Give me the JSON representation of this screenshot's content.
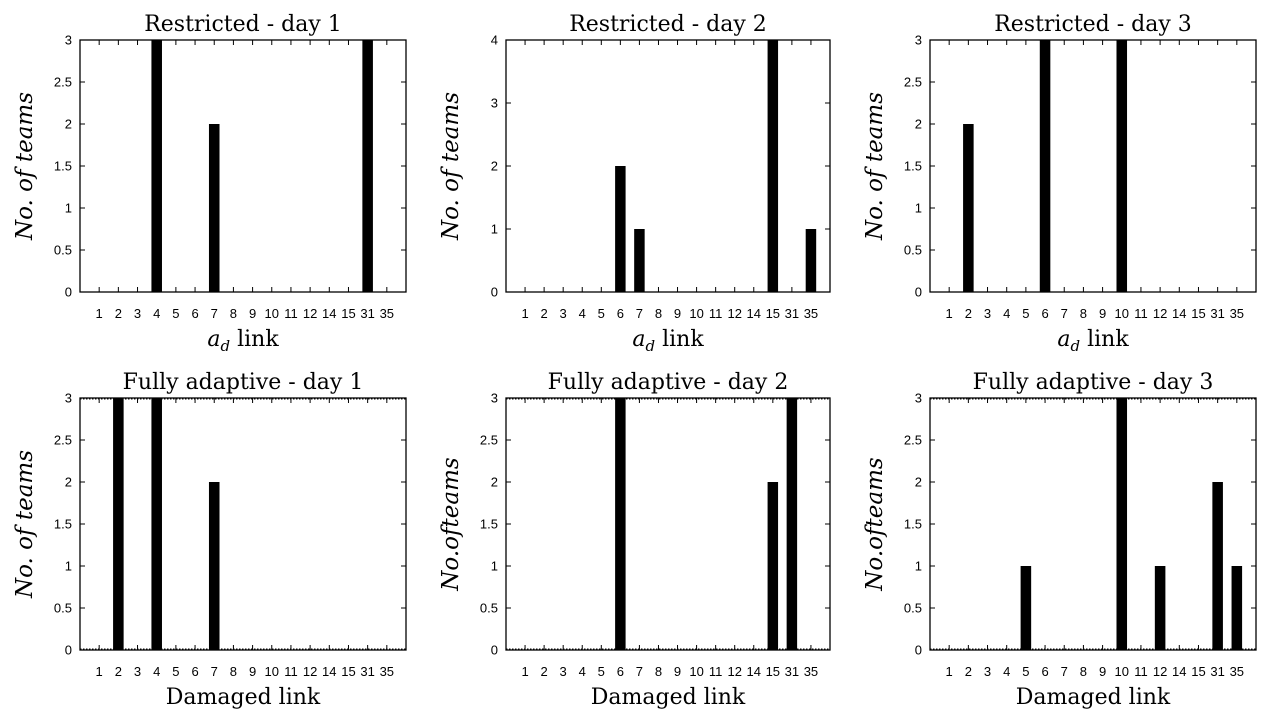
{
  "chart_data": [
    {
      "type": "bar",
      "title": "Restricted - day 1",
      "xlabel_main": "a",
      "xlabel_sub": "d",
      "xlabel_rest": " link",
      "ylabel": "No. of teams",
      "ylim": [
        0,
        3
      ],
      "yticks": [
        "0",
        "0.5",
        "1",
        "1.5",
        "2",
        "2.5",
        "3"
      ],
      "categories": [
        "1",
        "2",
        "3",
        "4",
        "5",
        "6",
        "7",
        "8",
        "9",
        "10",
        "11",
        "12",
        "14",
        "15",
        "31",
        "35"
      ],
      "values": [
        0,
        0,
        0,
        3,
        0,
        0,
        2,
        0,
        0,
        0,
        0,
        0,
        0,
        0,
        3,
        0
      ],
      "grid": false
    },
    {
      "type": "bar",
      "title": "Restricted - day 2",
      "xlabel_main": "a",
      "xlabel_sub": "d",
      "xlabel_rest": " link",
      "ylabel": "No. of teams",
      "ylim": [
        0,
        4
      ],
      "yticks": [
        "0",
        "1",
        "2",
        "3",
        "4"
      ],
      "categories": [
        "1",
        "2",
        "3",
        "4",
        "5",
        "6",
        "7",
        "8",
        "9",
        "10",
        "11",
        "12",
        "14",
        "15",
        "31",
        "35"
      ],
      "values": [
        0,
        0,
        0,
        0,
        0,
        2,
        1,
        0,
        0,
        0,
        0,
        0,
        0,
        4,
        0,
        1
      ],
      "grid": false
    },
    {
      "type": "bar",
      "title": "Restricted - day 3",
      "xlabel_main": "a",
      "xlabel_sub": "d",
      "xlabel_rest": " link",
      "ylabel": "No. of teams",
      "ylim": [
        0,
        3
      ],
      "yticks": [
        "0",
        "0.5",
        "1",
        "1.5",
        "2",
        "2.5",
        "3"
      ],
      "categories": [
        "1",
        "2",
        "3",
        "4",
        "5",
        "6",
        "7",
        "8",
        "9",
        "10",
        "11",
        "12",
        "14",
        "15",
        "31",
        "35"
      ],
      "values": [
        0,
        2,
        0,
        0,
        0,
        3,
        0,
        0,
        0,
        3,
        0,
        0,
        0,
        0,
        0,
        0
      ],
      "grid": false
    },
    {
      "type": "bar",
      "title": "Fully adaptive - day 1",
      "xlabel": "Damaged link",
      "ylabel": "No. of teams",
      "ylim": [
        0,
        3
      ],
      "yticks": [
        "0",
        "0.5",
        "1",
        "1.5",
        "2",
        "2.5",
        "3"
      ],
      "categories": [
        "1",
        "2",
        "3",
        "4",
        "5",
        "6",
        "7",
        "8",
        "9",
        "10",
        "11",
        "12",
        "14",
        "15",
        "31",
        "35"
      ],
      "values": [
        0,
        3,
        0,
        3,
        0,
        0,
        2,
        0,
        0,
        0,
        0,
        0,
        0,
        0,
        0,
        0
      ],
      "grid": false
    },
    {
      "type": "bar",
      "title": "Fully adaptive - day 2",
      "xlabel": "Damaged link",
      "ylabel": "No.ofteams",
      "ylim": [
        0,
        3
      ],
      "yticks": [
        "0",
        "0.5",
        "1",
        "1.5",
        "2",
        "2.5",
        "3"
      ],
      "categories": [
        "1",
        "2",
        "3",
        "4",
        "5",
        "6",
        "7",
        "8",
        "9",
        "10",
        "11",
        "12",
        "14",
        "15",
        "31",
        "35"
      ],
      "values": [
        0,
        0,
        0,
        0,
        0,
        3,
        0,
        0,
        0,
        0,
        0,
        0,
        0,
        2,
        3,
        0
      ],
      "grid": false
    },
    {
      "type": "bar",
      "title": "Fully adaptive - day 3",
      "xlabel": "Damaged link",
      "ylabel": "No.ofteams",
      "ylim": [
        0,
        3
      ],
      "yticks": [
        "0",
        "0.5",
        "1",
        "1.5",
        "2",
        "2.5",
        "3"
      ],
      "categories": [
        "1",
        "2",
        "3",
        "4",
        "5",
        "6",
        "7",
        "8",
        "9",
        "10",
        "11",
        "12",
        "14",
        "15",
        "31",
        "35"
      ],
      "values": [
        0,
        0,
        0,
        0,
        1,
        0,
        0,
        0,
        0,
        3,
        0,
        1,
        0,
        0,
        2,
        1
      ],
      "grid": false
    }
  ]
}
